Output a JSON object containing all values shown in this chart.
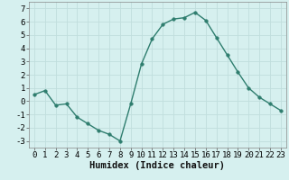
{
  "x": [
    0,
    1,
    2,
    3,
    4,
    5,
    6,
    7,
    8,
    9,
    10,
    11,
    12,
    13,
    14,
    15,
    16,
    17,
    18,
    19,
    20,
    21,
    22,
    23
  ],
  "y": [
    0.5,
    0.8,
    -0.3,
    -0.2,
    -1.2,
    -1.7,
    -2.2,
    -2.5,
    -3.0,
    -0.2,
    2.8,
    4.7,
    5.8,
    6.2,
    6.3,
    6.7,
    6.1,
    4.8,
    3.5,
    2.2,
    1.0,
    0.3,
    -0.2,
    -0.7
  ],
  "line_color": "#2e7d6e",
  "marker": "o",
  "marker_size": 2.5,
  "bg_color": "#d6f0ef",
  "grid_color": "#c0dedd",
  "xlabel": "Humidex (Indice chaleur)",
  "xlim": [
    -0.5,
    23.5
  ],
  "ylim": [
    -3.5,
    7.5
  ],
  "xticks": [
    0,
    1,
    2,
    3,
    4,
    5,
    6,
    7,
    8,
    9,
    10,
    11,
    12,
    13,
    14,
    15,
    16,
    17,
    18,
    19,
    20,
    21,
    22,
    23
  ],
  "yticks": [
    -3,
    -2,
    -1,
    0,
    1,
    2,
    3,
    4,
    5,
    6,
    7
  ],
  "tick_fontsize": 6.5,
  "xlabel_fontsize": 7.5
}
